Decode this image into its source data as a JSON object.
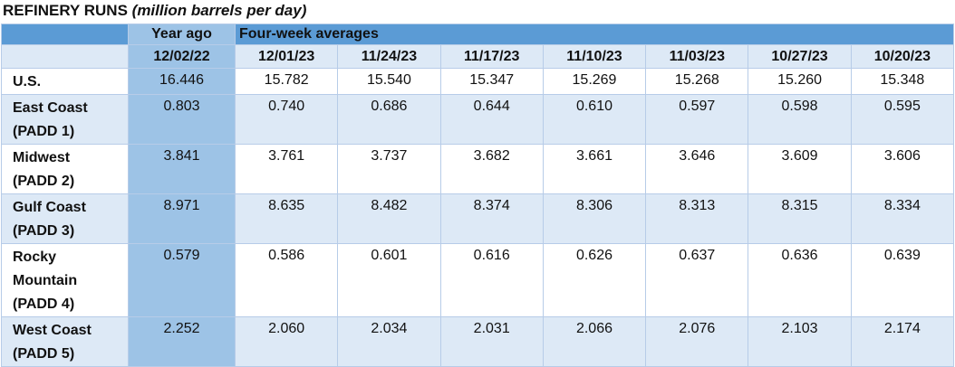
{
  "title": {
    "main": "REFINERY RUNS",
    "unit": "(million barrels per day)"
  },
  "table": {
    "header": {
      "year_ago": "Year ago",
      "averages": "Four-week averages"
    },
    "columns": [
      "12/02/22",
      "12/01/23",
      "11/24/23",
      "11/17/23",
      "11/10/23",
      "11/03/23",
      "10/27/23",
      "10/20/23"
    ],
    "rows": [
      {
        "label": "U.S.",
        "values": [
          "16.446",
          "15.782",
          "15.540",
          "15.347",
          "15.269",
          "15.268",
          "15.260",
          "15.348"
        ]
      },
      {
        "label": "East Coast (PADD 1)",
        "values": [
          "0.803",
          "0.740",
          "0.686",
          "0.644",
          "0.610",
          "0.597",
          "0.598",
          "0.595"
        ]
      },
      {
        "label": "Midwest (PADD 2)",
        "values": [
          "3.841",
          "3.761",
          "3.737",
          "3.682",
          "3.661",
          "3.646",
          "3.609",
          "3.606"
        ]
      },
      {
        "label": "Gulf Coast (PADD 3)",
        "values": [
          "8.971",
          "8.635",
          "8.482",
          "8.374",
          "8.306",
          "8.313",
          "8.315",
          "8.334"
        ]
      },
      {
        "label": "Rocky Mountain (PADD 4)",
        "values": [
          "0.579",
          "0.586",
          "0.601",
          "0.616",
          "0.626",
          "0.637",
          "0.636",
          "0.639"
        ]
      },
      {
        "label": "West Coast (PADD 5)",
        "values": [
          "2.252",
          "2.060",
          "2.034",
          "2.031",
          "2.066",
          "2.076",
          "2.103",
          "2.174"
        ]
      }
    ]
  }
}
